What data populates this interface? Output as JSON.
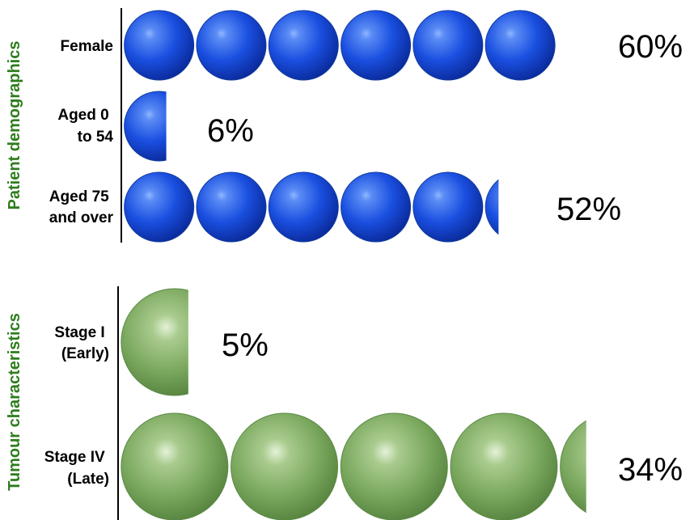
{
  "colors": {
    "blue_base": "#1448d8",
    "blue_light": "#6fa0ff",
    "blue_dark": "#0a2a9a",
    "green_base": "#6e9e52",
    "green_light": "#d8ecc8",
    "green_dark": "#4f7c38",
    "group_title": "#2e7d1e"
  },
  "chart_data": [
    {
      "type": "bar",
      "group_label": "Patient demographics",
      "marker": "sphere",
      "marker_color": "blue",
      "unit_percent_per_marker": 10,
      "categories": [
        [
          "Female"
        ],
        [
          "Aged 0",
          "to 54"
        ],
        [
          "Aged 75",
          "and over"
        ]
      ],
      "values": [
        60,
        6,
        52
      ],
      "value_labels": [
        "60%",
        "6%",
        "52%"
      ]
    },
    {
      "type": "bar",
      "group_label": "Tumour characteristics",
      "marker": "sphere",
      "marker_color": "green",
      "unit_percent_per_marker": 8,
      "categories": [
        [
          "Stage I",
          "(Early)"
        ],
        [
          "Stage IV",
          "(Late)"
        ]
      ],
      "values": [
        5,
        34
      ],
      "value_labels": [
        "5%",
        "34%"
      ]
    }
  ]
}
